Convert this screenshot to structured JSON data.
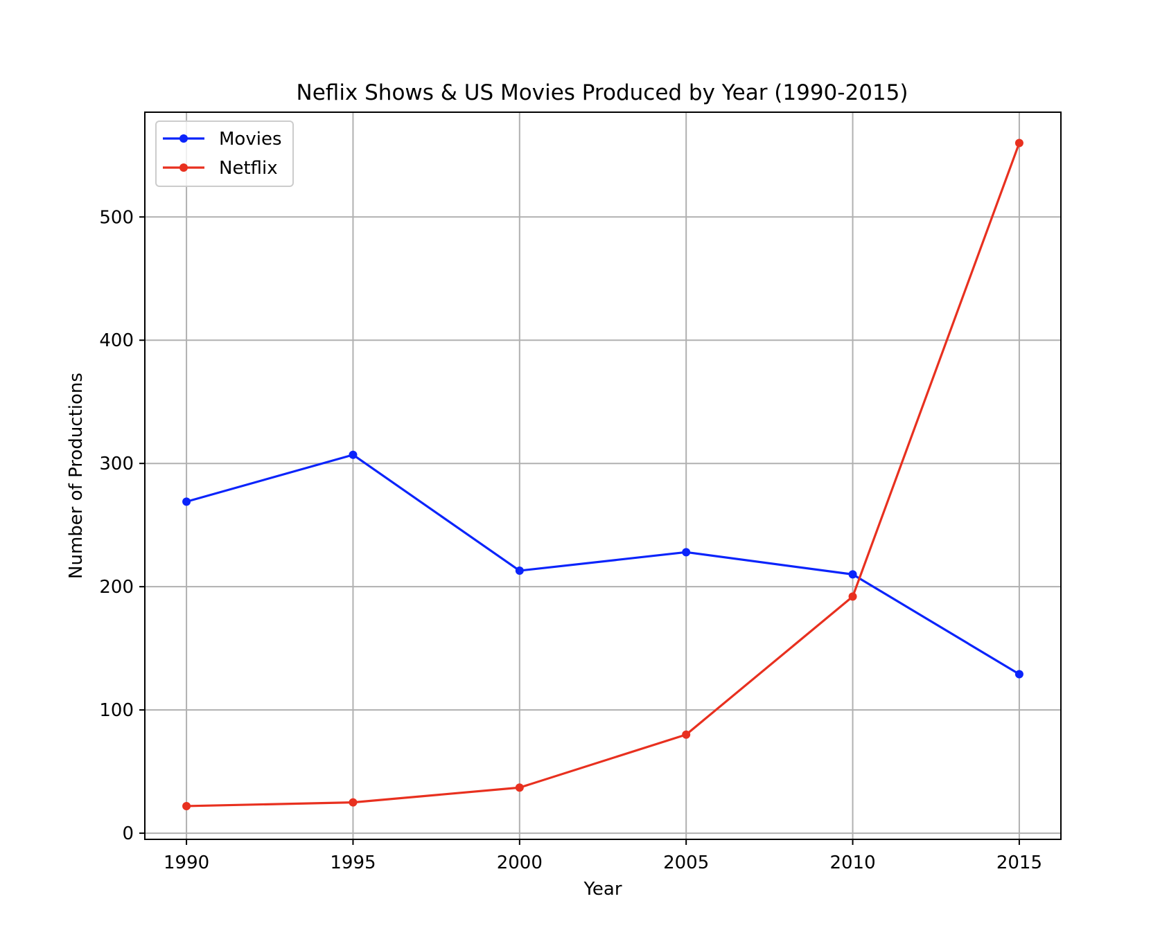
{
  "chart_data": {
    "type": "line",
    "title": "Neflix Shows & US Movies Produced by Year (1990-2015)",
    "xlabel": "Year",
    "ylabel": "Number of Productions",
    "x": [
      1990,
      1995,
      2000,
      2005,
      2010,
      2015
    ],
    "x_tick_labels": [
      "1990",
      "1995",
      "2000",
      "2005",
      "2010",
      "2015"
    ],
    "y_ticks": [
      0,
      100,
      200,
      300,
      400,
      500
    ],
    "y_tick_labels": [
      "0",
      "100",
      "200",
      "300",
      "400",
      "500"
    ],
    "xlim": [
      1988.75,
      2016.25
    ],
    "ylim": [
      -5,
      585
    ],
    "grid": true,
    "legend_position": "upper-left",
    "series": [
      {
        "name": "Movies",
        "color": "#0b24fb",
        "values": [
          269,
          307,
          213,
          228,
          210,
          129
        ]
      },
      {
        "name": "Netflix",
        "color": "#e8301f",
        "values": [
          22,
          25,
          37,
          80,
          192,
          560
        ]
      }
    ]
  }
}
